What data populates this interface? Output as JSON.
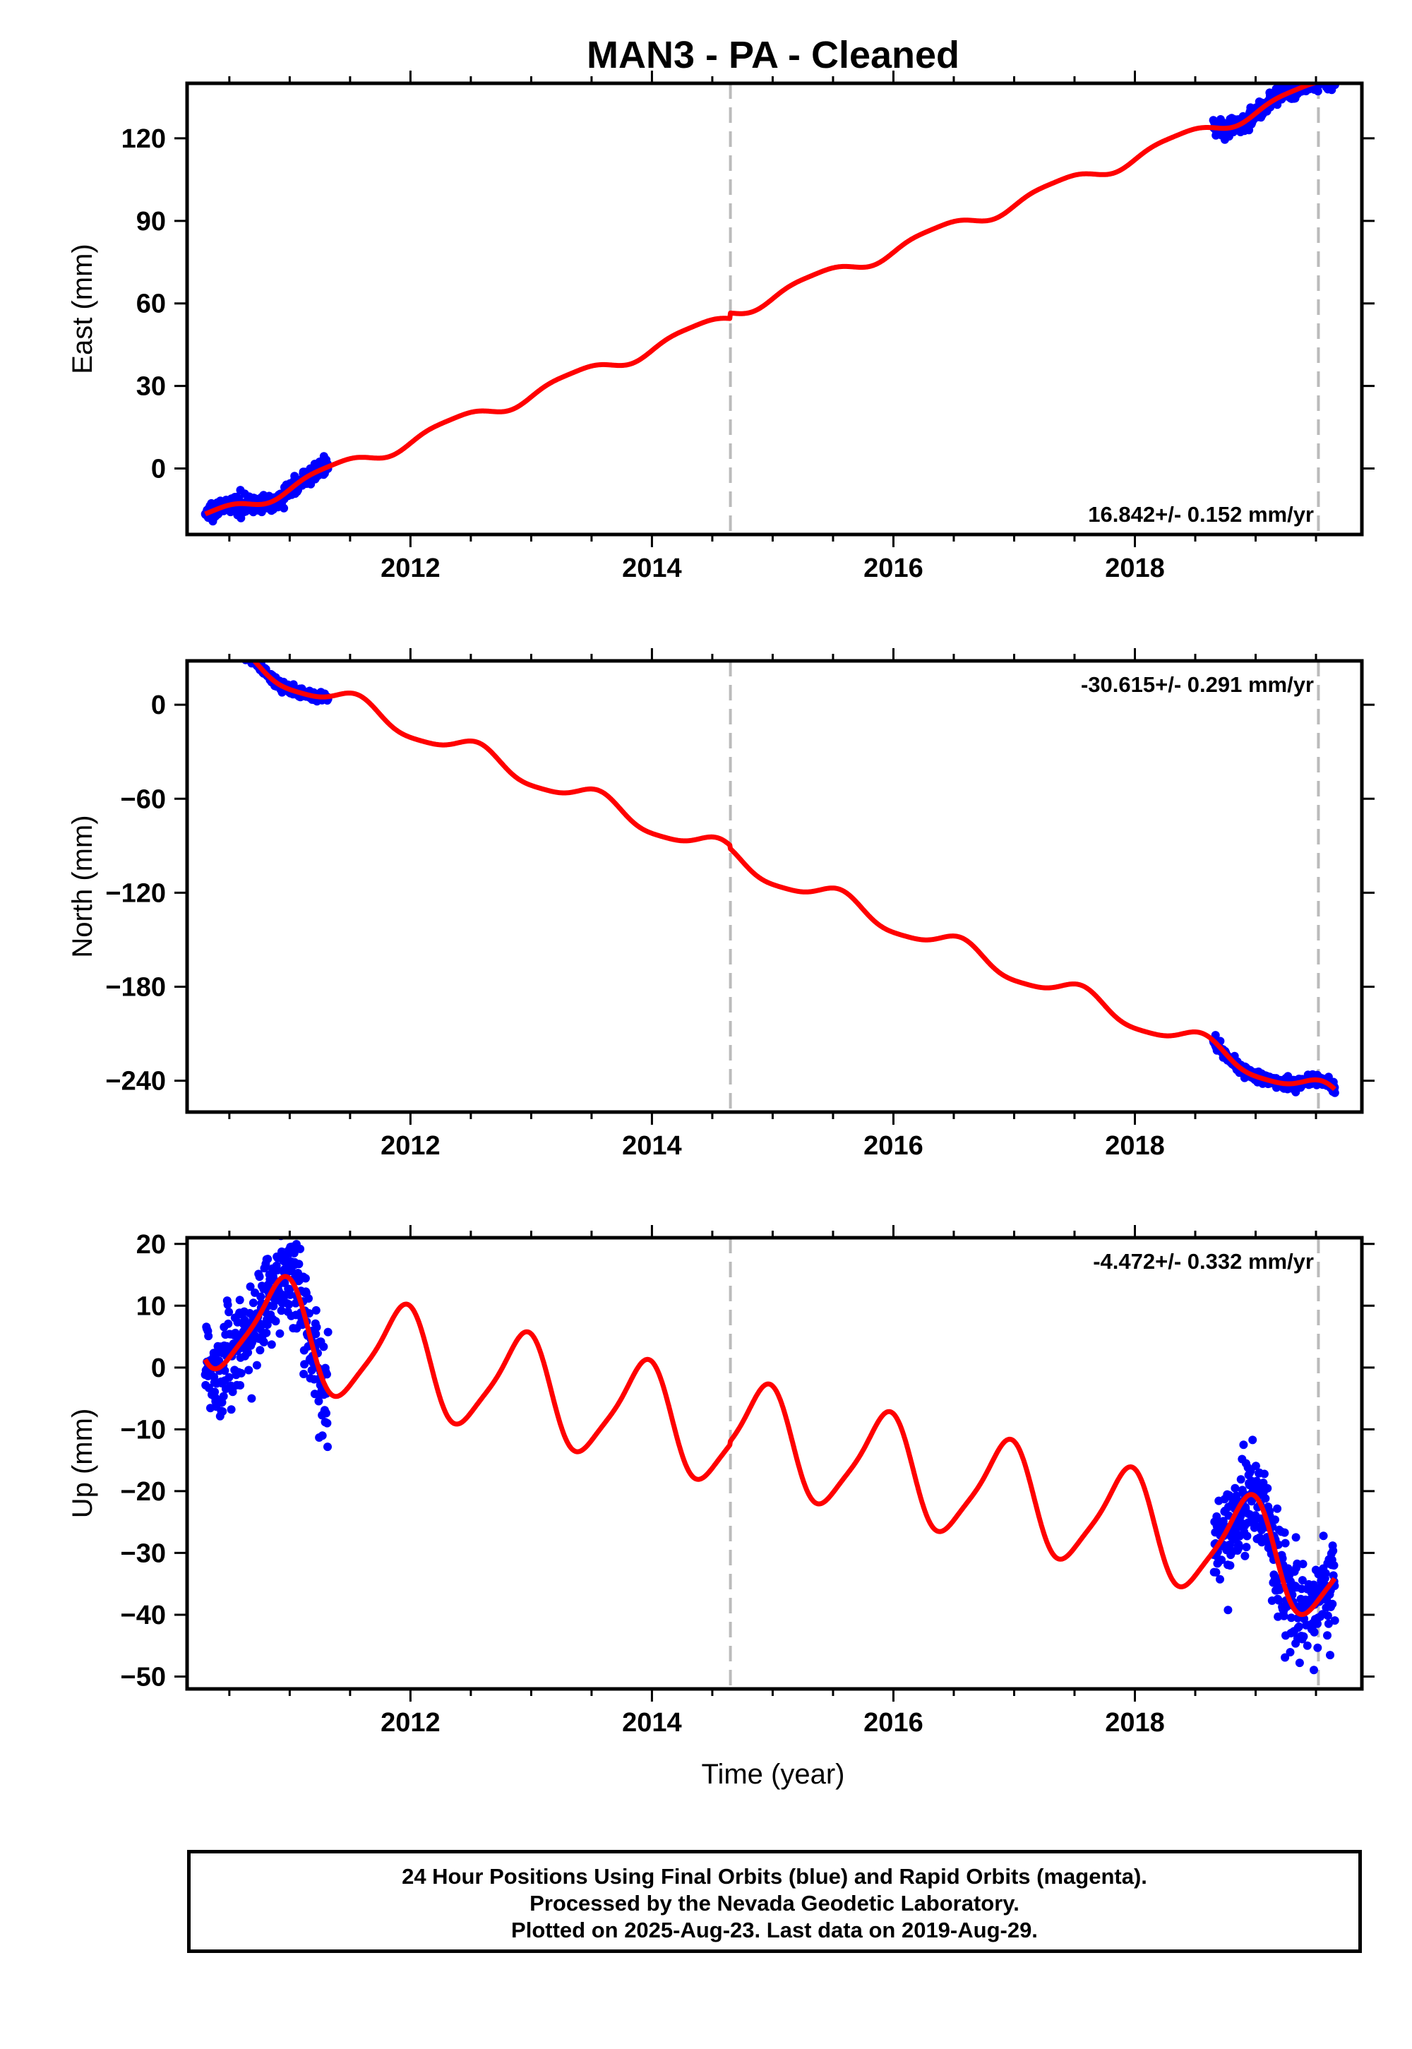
{
  "title": "MAN3  - PA - Cleaned",
  "xlabel": "Time (year)",
  "footer": {
    "line1": "24 Hour Positions Using Final Orbits (blue) and Rapid Orbits (magenta).",
    "line2": "Processed by the Nevada Geodetic Laboratory.",
    "line3": "Plotted on 2025-Aug-23. Last data on 2019-Aug-29."
  },
  "colors": {
    "data": "#0000ff",
    "model": "#ff0000",
    "steps": "#bbbbbb",
    "frame": "#000000"
  },
  "chart_data": [
    {
      "type": "scatter",
      "component": "East",
      "ylabel": "East (mm)",
      "rate": "16.842+/- 0.152 mm/yr",
      "rate_position": "bottom-right",
      "xlim": [
        2010.15,
        2019.88
      ],
      "ylim": [
        -24,
        140
      ],
      "xticks": [
        2012,
        2014,
        2016,
        2018
      ],
      "yticks": [
        0,
        30,
        60,
        90,
        120
      ],
      "step_lines": [
        2014.65,
        2019.52
      ],
      "model": {
        "t0": 2015.0,
        "b0": 60.8,
        "rate": 16.842,
        "ann_sin": 2.0,
        "ann_cos": -1.4,
        "semi_sin": 0.5,
        "semi_cos": 0.3,
        "offsets": [
          [
            2014.65,
            2.0
          ]
        ]
      },
      "data_segments": [
        {
          "start": 2010.3,
          "end": 2011.32,
          "scatter": 1.5
        },
        {
          "start": 2018.65,
          "end": 2019.66,
          "scatter": 1.5
        }
      ]
    },
    {
      "type": "scatter",
      "component": "North",
      "ylabel": "North (mm)",
      "rate": "-30.615+/- 0.291 mm/yr",
      "rate_position": "top-right",
      "xlim": [
        2010.15,
        2019.88
      ],
      "ylim": [
        -260,
        28
      ],
      "xticks": [
        2012,
        2014,
        2016,
        2018
      ],
      "yticks": [
        0,
        -60,
        -120,
        -180,
        -240
      ],
      "step_lines": [
        2014.65,
        2019.52
      ],
      "model": {
        "t0": 2015.0,
        "b0": -107,
        "rate": -30.615,
        "ann_sin": -2.0,
        "ann_cos": -6.5,
        "semi_sin": 1.2,
        "semi_cos": 0.8,
        "offsets": [
          [
            2014.65,
            -2.0
          ]
        ]
      },
      "data_segments": [
        {
          "start": 2010.3,
          "end": 2011.32,
          "scatter": 1.8
        },
        {
          "start": 2018.65,
          "end": 2019.66,
          "scatter": 1.8
        }
      ]
    },
    {
      "type": "scatter",
      "component": "Up",
      "ylabel": "Up (mm)",
      "rate": "-4.472+/- 0.332 mm/yr",
      "rate_position": "top-right",
      "xlim": [
        2010.15,
        2019.88
      ],
      "ylim": [
        -52,
        21
      ],
      "xticks": [
        2012,
        2014,
        2016,
        2018
      ],
      "yticks": [
        20,
        10,
        0,
        -10,
        -20,
        -30,
        -40,
        -50
      ],
      "step_lines": [
        2014.65,
        2019.52
      ],
      "model": {
        "t0": 2015.0,
        "b0": -12.5,
        "rate": -4.472,
        "ann_sin": -3.5,
        "ann_cos": 7.5,
        "semi_sin": 0.6,
        "semi_cos": 1.5,
        "offsets": [
          [
            2014.65,
            0.5
          ]
        ]
      },
      "data_segments": [
        {
          "start": 2010.3,
          "end": 2011.32,
          "scatter": 4.0
        },
        {
          "start": 2018.65,
          "end": 2019.66,
          "scatter": 4.0
        }
      ]
    }
  ]
}
